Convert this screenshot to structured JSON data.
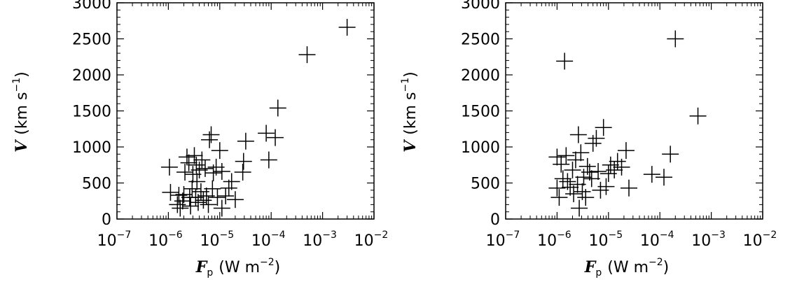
{
  "chart_data": [
    {
      "type": "scatter",
      "marker": "plus",
      "xscale": "log",
      "xlim": [
        1e-07,
        0.01
      ],
      "ylim": [
        0,
        3000
      ],
      "xlabel": {
        "var": "F",
        "sub": "p",
        "unit": "(W m",
        "unit_exp": "−2",
        "unit_close": ")"
      },
      "ylabel": {
        "var": "V",
        "unit": "(km s",
        "unit_exp": "−1",
        "unit_close": ")"
      },
      "xticks": [
        {
          "base": "10",
          "exp": "−7",
          "value": 1e-07
        },
        {
          "base": "10",
          "exp": "−6",
          "value": 1e-06
        },
        {
          "base": "10",
          "exp": "−5",
          "value": 1e-05
        },
        {
          "base": "10",
          "exp": "−4",
          "value": 0.0001
        },
        {
          "base": "10",
          "exp": "−3",
          "value": 0.001
        },
        {
          "base": "10",
          "exp": "−2",
          "value": 0.01
        }
      ],
      "yticks": [
        "0",
        "500",
        "1000",
        "1500",
        "2000",
        "2500",
        "3000"
      ],
      "points": [
        {
          "x": 1.05e-06,
          "y": 720
        },
        {
          "x": 1.1e-06,
          "y": 370
        },
        {
          "x": 1.6e-06,
          "y": 330
        },
        {
          "x": 1.5e-06,
          "y": 200
        },
        {
          "x": 1.7e-06,
          "y": 150
        },
        {
          "x": 1.9e-06,
          "y": 250
        },
        {
          "x": 2e-06,
          "y": 340
        },
        {
          "x": 2.1e-06,
          "y": 650
        },
        {
          "x": 2.3e-06,
          "y": 860
        },
        {
          "x": 2.5e-06,
          "y": 780
        },
        {
          "x": 2.6e-06,
          "y": 300
        },
        {
          "x": 2.7e-06,
          "y": 180
        },
        {
          "x": 2.9e-06,
          "y": 420
        },
        {
          "x": 3e-06,
          "y": 620
        },
        {
          "x": 3.2e-06,
          "y": 880
        },
        {
          "x": 3.4e-06,
          "y": 300
        },
        {
          "x": 3.5e-06,
          "y": 750
        },
        {
          "x": 3.6e-06,
          "y": 520
        },
        {
          "x": 3.8e-06,
          "y": 230
        },
        {
          "x": 4e-06,
          "y": 680
        },
        {
          "x": 4.3e-06,
          "y": 380
        },
        {
          "x": 4.5e-06,
          "y": 820
        },
        {
          "x": 4.8e-06,
          "y": 260
        },
        {
          "x": 5.2e-06,
          "y": 700
        },
        {
          "x": 5.5e-06,
          "y": 320
        },
        {
          "x": 6e-06,
          "y": 200
        },
        {
          "x": 6.3e-06,
          "y": 1100
        },
        {
          "x": 6.8e-06,
          "y": 1170
        },
        {
          "x": 7.2e-06,
          "y": 420
        },
        {
          "x": 7.5e-06,
          "y": 640
        },
        {
          "x": 8.5e-06,
          "y": 720
        },
        {
          "x": 9e-06,
          "y": 300
        },
        {
          "x": 1e-05,
          "y": 950
        },
        {
          "x": 1.1e-05,
          "y": 660
        },
        {
          "x": 1.1e-05,
          "y": 150
        },
        {
          "x": 1.3e-05,
          "y": 320
        },
        {
          "x": 1.5e-05,
          "y": 430
        },
        {
          "x": 1.7e-05,
          "y": 520
        },
        {
          "x": 2e-05,
          "y": 270
        },
        {
          "x": 2.8e-05,
          "y": 650
        },
        {
          "x": 2.9e-05,
          "y": 800
        },
        {
          "x": 3.2e-05,
          "y": 1080
        },
        {
          "x": 8e-05,
          "y": 1190
        },
        {
          "x": 9e-05,
          "y": 820
        },
        {
          "x": 0.00012,
          "y": 1130
        },
        {
          "x": 0.000135,
          "y": 1540
        },
        {
          "x": 0.0005,
          "y": 2280
        },
        {
          "x": 0.003,
          "y": 2660
        }
      ]
    },
    {
      "type": "scatter",
      "marker": "plus",
      "xscale": "log",
      "xlim": [
        1e-07,
        0.01
      ],
      "ylim": [
        0,
        3000
      ],
      "xlabel": {
        "var": "F",
        "sub": "p",
        "unit": "(W m",
        "unit_exp": "−2",
        "unit_close": ")"
      },
      "ylabel": {
        "var": "V",
        "unit": "(km s",
        "unit_exp": "−1",
        "unit_close": ")"
      },
      "xticks": [
        {
          "base": "10",
          "exp": "−7",
          "value": 1e-07
        },
        {
          "base": "10",
          "exp": "−6",
          "value": 1e-06
        },
        {
          "base": "10",
          "exp": "−5",
          "value": 1e-05
        },
        {
          "base": "10",
          "exp": "−4",
          "value": 0.0001
        },
        {
          "base": "10",
          "exp": "−3",
          "value": 0.001
        },
        {
          "base": "10",
          "exp": "−2",
          "value": 0.01
        }
      ],
      "yticks": [
        "0",
        "500",
        "1000",
        "1500",
        "2000",
        "2500",
        "3000"
      ],
      "points": [
        {
          "x": 1e-06,
          "y": 860
        },
        {
          "x": 1e-06,
          "y": 430
        },
        {
          "x": 1.1e-06,
          "y": 300
        },
        {
          "x": 1.2e-06,
          "y": 760
        },
        {
          "x": 1.3e-06,
          "y": 560
        },
        {
          "x": 1.4e-06,
          "y": 2190
        },
        {
          "x": 1.5e-06,
          "y": 880
        },
        {
          "x": 1.6e-06,
          "y": 520
        },
        {
          "x": 1.8e-06,
          "y": 440
        },
        {
          "x": 2e-06,
          "y": 680
        },
        {
          "x": 2.1e-06,
          "y": 350
        },
        {
          "x": 2.3e-06,
          "y": 820
        },
        {
          "x": 2.5e-06,
          "y": 480
        },
        {
          "x": 2.6e-06,
          "y": 1170
        },
        {
          "x": 2.7e-06,
          "y": 150
        },
        {
          "x": 2.9e-06,
          "y": 920
        },
        {
          "x": 3.1e-06,
          "y": 380
        },
        {
          "x": 3.3e-06,
          "y": 580
        },
        {
          "x": 3.6e-06,
          "y": 300
        },
        {
          "x": 3.9e-06,
          "y": 730
        },
        {
          "x": 4.3e-06,
          "y": 650
        },
        {
          "x": 4.7e-06,
          "y": 560
        },
        {
          "x": 5e-06,
          "y": 1050
        },
        {
          "x": 5.8e-06,
          "y": 1120
        },
        {
          "x": 6.3e-06,
          "y": 660
        },
        {
          "x": 7e-06,
          "y": 400
        },
        {
          "x": 8e-06,
          "y": 1270
        },
        {
          "x": 9e-06,
          "y": 450
        },
        {
          "x": 1e-05,
          "y": 630
        },
        {
          "x": 1.1e-05,
          "y": 750
        },
        {
          "x": 1.3e-05,
          "y": 680
        },
        {
          "x": 1.5e-05,
          "y": 800
        },
        {
          "x": 1.8e-05,
          "y": 720
        },
        {
          "x": 2.2e-05,
          "y": 950
        },
        {
          "x": 2.5e-05,
          "y": 430
        },
        {
          "x": 7e-05,
          "y": 620
        },
        {
          "x": 0.00012,
          "y": 580
        },
        {
          "x": 0.00016,
          "y": 900
        },
        {
          "x": 0.0002,
          "y": 2500
        },
        {
          "x": 0.00055,
          "y": 1430
        }
      ]
    }
  ]
}
